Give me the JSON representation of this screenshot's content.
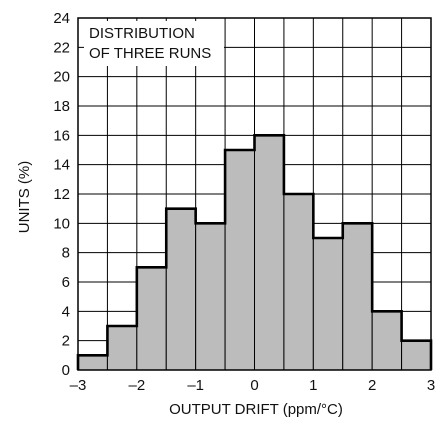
{
  "chart_data": {
    "type": "bar",
    "style": "histogram",
    "bin_edges": [
      -3,
      -2.5,
      -2,
      -1.5,
      -1,
      -0.5,
      0,
      0.5,
      1,
      1.5,
      2,
      2.5,
      3
    ],
    "values": [
      1,
      3,
      7,
      11,
      10,
      15,
      16,
      12,
      9,
      10,
      4,
      2
    ],
    "xlabel": "OUTPUT DRIFT (ppm/°C)",
    "ylabel": "UNITS (%)",
    "xlim": [
      -3,
      3
    ],
    "ylim": [
      0,
      24
    ],
    "x_ticks": [
      -3,
      -2,
      -1,
      0,
      1,
      2,
      3
    ],
    "x_tick_labels": [
      "–3",
      "–2",
      "–1",
      "0",
      "1",
      "2",
      "3"
    ],
    "y_ticks": [
      0,
      2,
      4,
      6,
      8,
      10,
      12,
      14,
      16,
      18,
      20,
      22,
      24
    ],
    "grid": true,
    "annotation_lines": [
      "DISTRIBUTION",
      "OF THREE RUNS"
    ],
    "colors": {
      "bar_fill": "#bcbcbc",
      "bar_outline": "#000000",
      "grid": "#000000",
      "background": "#ffffff"
    }
  }
}
